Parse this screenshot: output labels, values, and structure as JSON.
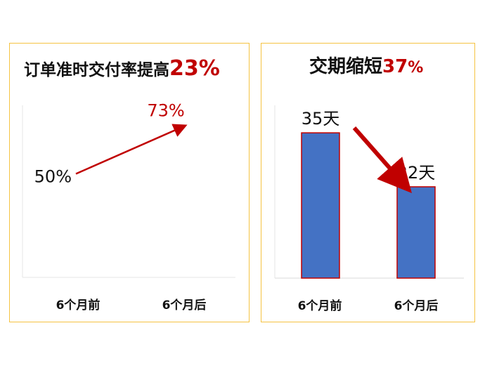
{
  "colors": {
    "accent_red": "#c00000",
    "bar_blue": "#4472c4",
    "border_gold": "#f5c342"
  },
  "left_panel": {
    "title_prefix": "订单准时交付率提高",
    "title_highlight": "23%"
  },
  "right_panel": {
    "title_prefix": "交期缩短",
    "title_highlight": "37",
    "title_suffix": "%"
  },
  "chart_data": [
    {
      "type": "line",
      "categories": [
        "6个月前",
        "6个月后"
      ],
      "values": [
        50,
        73
      ],
      "value_labels": [
        "50%",
        "73%"
      ],
      "unit": "%",
      "ylim": [
        0,
        100
      ],
      "grid": false
    },
    {
      "type": "bar",
      "categories": [
        "6个月前",
        "6个月后"
      ],
      "values": [
        35,
        22
      ],
      "value_labels": [
        "35天",
        "22天"
      ],
      "unit": "天",
      "ylim": [
        0,
        45
      ],
      "grid": false
    }
  ]
}
